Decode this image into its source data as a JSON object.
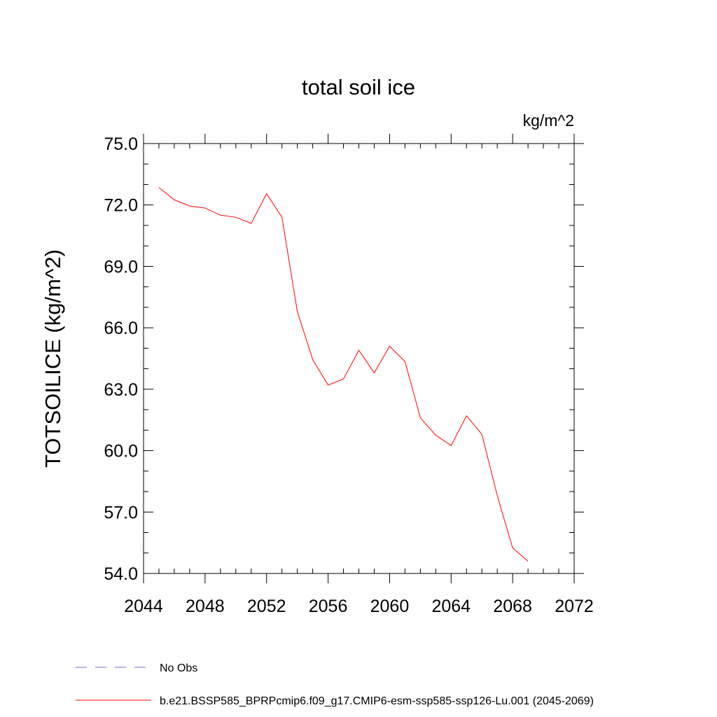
{
  "chart_data": {
    "type": "line",
    "title": "total soil ice",
    "units_label": "kg/m^2",
    "ylabel": "TOTSOILICE  (kg/m^2)",
    "xlabel": "",
    "xlim": [
      2044,
      2072
    ],
    "ylim": [
      54.0,
      75.0
    ],
    "x_ticks": [
      2044,
      2048,
      2052,
      2056,
      2060,
      2064,
      2068,
      2072
    ],
    "x_tick_labels": [
      "2044",
      "2048",
      "2052",
      "2056",
      "2060",
      "2064",
      "2068",
      "2072"
    ],
    "y_ticks": [
      54.0,
      57.0,
      60.0,
      63.0,
      66.0,
      69.0,
      72.0,
      75.0
    ],
    "y_tick_labels": [
      "54.0",
      "57.0",
      "60.0",
      "63.0",
      "66.0",
      "69.0",
      "72.0",
      "75.0"
    ],
    "x_minor_step": 1,
    "y_minor_step": 1.0,
    "grid": false,
    "legend_position": "bottom",
    "series": [
      {
        "name": "b.e21.BSSP585_BPRPcmip6.f09_g17.CMIP6-esm-ssp585-ssp126-Lu.001 (2045-2069)",
        "color": "#ff0000",
        "style": "solid",
        "x": [
          2045,
          2046,
          2047,
          2048,
          2049,
          2050,
          2051,
          2052,
          2053,
          2054,
          2055,
          2056,
          2057,
          2058,
          2059,
          2060,
          2061,
          2062,
          2063,
          2064,
          2065,
          2066,
          2067,
          2068,
          2069
        ],
        "y": [
          72.85,
          72.25,
          71.95,
          71.85,
          71.5,
          71.4,
          71.1,
          72.55,
          71.4,
          66.8,
          64.45,
          63.2,
          63.5,
          64.9,
          63.8,
          65.1,
          64.35,
          61.6,
          60.75,
          60.25,
          61.7,
          60.8,
          57.8,
          55.25,
          54.6
        ]
      }
    ],
    "legend": [
      {
        "label": "No Obs",
        "color": "#7b68c8",
        "style": "dashed"
      },
      {
        "label": "b.e21.BSSP585_BPRPcmip6.f09_g17.CMIP6-esm-ssp585-ssp126-Lu.001 (2045-2069)",
        "color": "#ff0000",
        "style": "solid"
      }
    ]
  }
}
